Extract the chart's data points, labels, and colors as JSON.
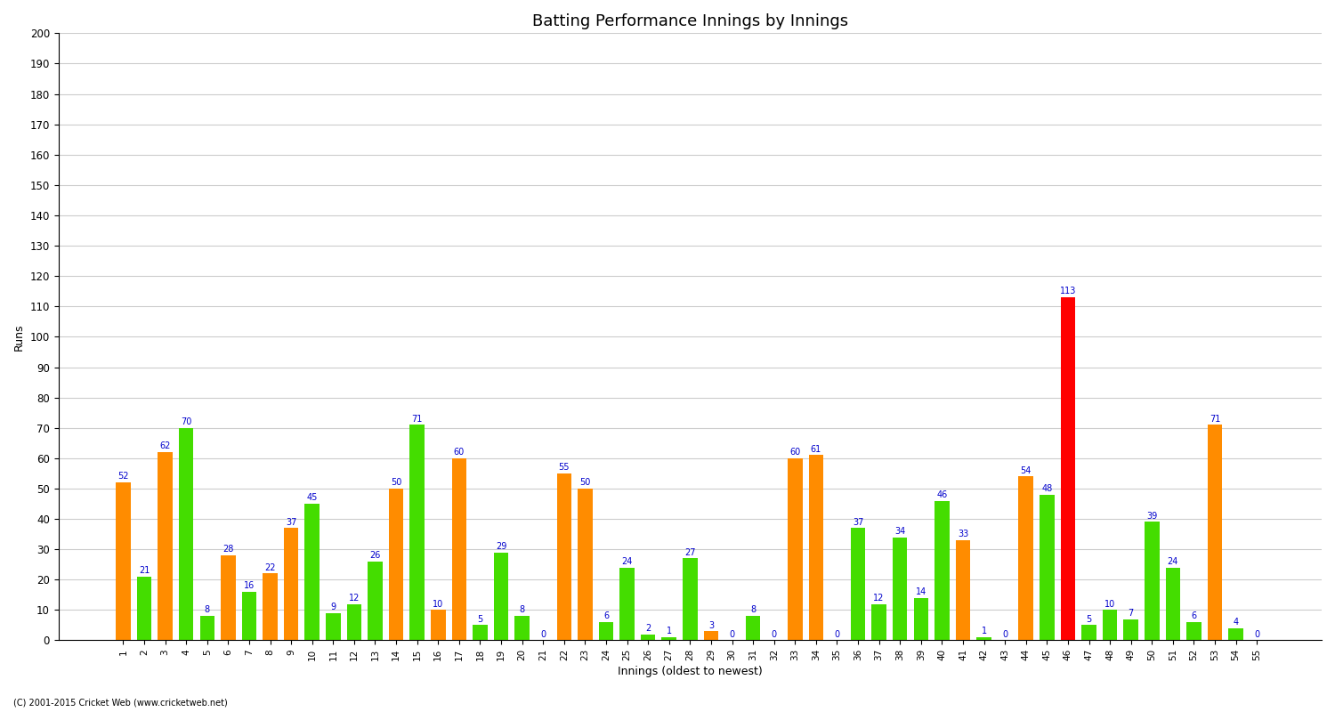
{
  "title": "Batting Performance Innings by Innings",
  "xlabel": "Innings (oldest to newest)",
  "ylabel": "Runs",
  "footer": "(C) 2001-2015 Cricket Web (www.cricketweb.net)",
  "ylim": [
    0,
    200
  ],
  "yticks": [
    0,
    10,
    20,
    30,
    40,
    50,
    60,
    70,
    80,
    90,
    100,
    110,
    120,
    130,
    140,
    150,
    160,
    170,
    180,
    190,
    200
  ],
  "innings": [
    1,
    2,
    3,
    4,
    5,
    6,
    7,
    8,
    9,
    10,
    11,
    12,
    13,
    14,
    15,
    16,
    17,
    18,
    19,
    20,
    21,
    22,
    23,
    24,
    25,
    26,
    27,
    28,
    29,
    30,
    31,
    32,
    33,
    34,
    35,
    36,
    37,
    38,
    39,
    40,
    41,
    42,
    43,
    44,
    45,
    46,
    47,
    48,
    49,
    50,
    51,
    52,
    53,
    54,
    55
  ],
  "values": [
    52,
    21,
    62,
    70,
    8,
    28,
    16,
    22,
    37,
    45,
    9,
    12,
    26,
    50,
    71,
    10,
    60,
    5,
    29,
    8,
    0,
    55,
    50,
    6,
    24,
    2,
    1,
    27,
    3,
    0,
    8,
    0,
    60,
    61,
    0,
    37,
    12,
    34,
    14,
    46,
    33,
    1,
    0,
    54,
    48,
    113,
    5,
    10,
    7,
    39,
    24,
    6,
    71,
    4,
    0
  ],
  "colors": [
    "orange",
    "green",
    "orange",
    "green",
    "green",
    "orange",
    "green",
    "orange",
    "orange",
    "green",
    "green",
    "green",
    "green",
    "orange",
    "green",
    "orange",
    "orange",
    "green",
    "green",
    "green",
    "green",
    "orange",
    "orange",
    "green",
    "green",
    "green",
    "green",
    "green",
    "orange",
    "green",
    "green",
    "green",
    "orange",
    "orange",
    "green",
    "green",
    "green",
    "green",
    "green",
    "green",
    "orange",
    "green",
    "green",
    "orange",
    "green",
    "red",
    "green",
    "green",
    "green",
    "green",
    "green",
    "green",
    "orange",
    "green",
    "green"
  ],
  "bar_color_orange": "#FF8C00",
  "bar_color_green": "#44DD00",
  "bar_color_red": "#FF0000",
  "label_color": "#0000CC",
  "background_color": "#FFFFFF",
  "grid_color": "#CCCCCC",
  "title_fontsize": 13,
  "label_fontsize": 7,
  "axis_label_fontsize": 9,
  "tick_fontsize": 7.5
}
